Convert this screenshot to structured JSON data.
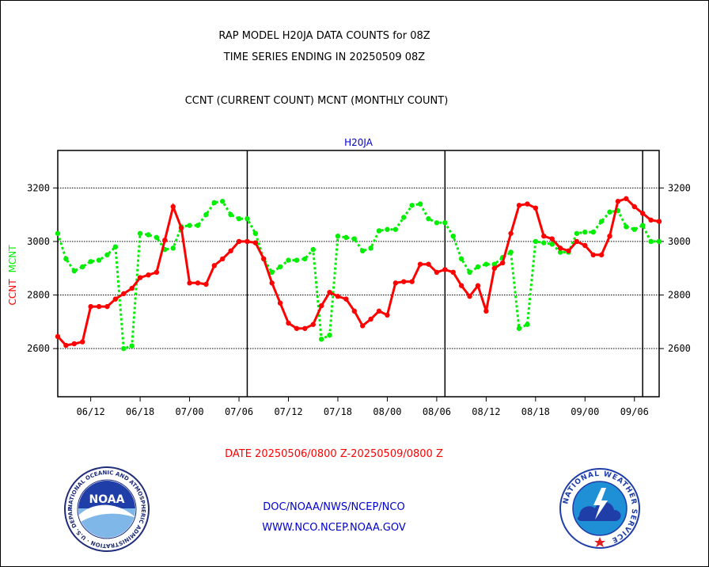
{
  "header": {
    "line1": "RAP MODEL H20JA DATA COUNTS for 08Z",
    "line2": "TIME SERIES ENDING IN 20250509 08Z",
    "line3": "CCNT (CURRENT COUNT) MCNT (MONTHLY COUNT)"
  },
  "footer": {
    "date_range": "DATE 20250506/0800 Z-20250509/0800 Z",
    "org": "DOC/NOAA/NWS/NCEP/NCO",
    "url": "WWW.NCO.NCEP.NOAA.GOV"
  },
  "logos": {
    "noaa_text": "NOAA",
    "noaa_ring_text": "NATIONAL OCEANIC AND ATMOSPHERIC ADMINISTRATION · U.S. DEPARTMENT OF COMMERCE",
    "nws_ring_text": "NATIONAL WEATHER SERVICE"
  },
  "colors": {
    "ccnt": "#ff0000",
    "mcnt": "#00ee00",
    "text": "#000000",
    "footer_date": "#ff0000",
    "footer_links": "#0000cc",
    "plot_title": "#0000cc"
  },
  "chart_data": {
    "type": "line",
    "title": "H20JA",
    "ylabel_ccnt": "CCNT",
    "ylabel_mcnt": "MCNT",
    "ylim": [
      2420,
      3340
    ],
    "yticks": [
      2600,
      2800,
      3000,
      3200
    ],
    "ytick_labels": [
      "2600",
      "2800",
      "3000",
      "3200"
    ],
    "x_tick_labels": [
      "06/12",
      "06/18",
      "07/00",
      "07/06",
      "07/12",
      "07/18",
      "08/00",
      "08/06",
      "08/12",
      "08/18",
      "09/00",
      "09/06"
    ],
    "x_tick_index": [
      5,
      11,
      17,
      23,
      29,
      35,
      41,
      47,
      53,
      59,
      65,
      71
    ],
    "x_range": [
      1,
      74
    ],
    "day_boundaries": [
      24,
      48,
      72
    ],
    "grid": true,
    "series": [
      {
        "name": "CCNT",
        "color": "#ff0000",
        "x": [
          1,
          2,
          3,
          4,
          5,
          6,
          7,
          8,
          9,
          10,
          11,
          12,
          13,
          14,
          15,
          16,
          17,
          18,
          19,
          20,
          21,
          22,
          23,
          24,
          25,
          26,
          27,
          28,
          29,
          30,
          31,
          32,
          33,
          34,
          35,
          36,
          37,
          38,
          39,
          40,
          41,
          42,
          43,
          44,
          45,
          46,
          47,
          48,
          49,
          50,
          51,
          52,
          53,
          54,
          55,
          56,
          57,
          58,
          59,
          60,
          61,
          62,
          63,
          64,
          65,
          66,
          67,
          68,
          69,
          70,
          71,
          72,
          73,
          74
        ],
        "values": [
          2645,
          2612,
          2618,
          2625,
          2757,
          2757,
          2757,
          2785,
          2805,
          2825,
          2865,
          2875,
          2885,
          3005,
          3130,
          3050,
          2845,
          2845,
          2840,
          2910,
          2935,
          2965,
          3000,
          3000,
          2995,
          2935,
          2845,
          2770,
          2695,
          2675,
          2675,
          2690,
          2760,
          2810,
          2795,
          2785,
          2740,
          2685,
          2710,
          2740,
          2725,
          2845,
          2850,
          2850,
          2915,
          2915,
          2885,
          2895,
          2885,
          2835,
          2795,
          2835,
          2740,
          2900,
          2920,
          3030,
          3135,
          3140,
          3125,
          3020,
          3010,
          2975,
          2965,
          3000,
          2985,
          2950,
          2950,
          3020,
          3150,
          3160,
          3130,
          3105,
          3080,
          3075
        ]
      },
      {
        "name": "MCNT",
        "color": "#00ee00",
        "x": [
          1,
          2,
          3,
          4,
          5,
          6,
          7,
          8,
          9,
          10,
          11,
          12,
          13,
          14,
          15,
          16,
          17,
          18,
          19,
          20,
          21,
          22,
          23,
          24,
          25,
          26,
          27,
          28,
          29,
          30,
          31,
          32,
          33,
          34,
          35,
          36,
          37,
          38,
          39,
          40,
          41,
          42,
          43,
          44,
          45,
          46,
          47,
          48,
          49,
          50,
          51,
          52,
          53,
          54,
          55,
          56,
          57,
          58,
          59,
          60,
          61,
          62,
          63,
          64,
          65,
          66,
          67,
          68,
          69,
          70,
          71,
          72,
          73,
          74
        ],
        "values": [
          3030,
          2935,
          2890,
          2905,
          2925,
          2930,
          2950,
          2980,
          2600,
          2610,
          3030,
          3025,
          3015,
          2970,
          2975,
          3055,
          3060,
          3060,
          3100,
          3145,
          3150,
          3100,
          3085,
          3085,
          3030,
          2935,
          2885,
          2905,
          2930,
          2930,
          2935,
          2970,
          2635,
          2650,
          3020,
          3015,
          3010,
          2965,
          2975,
          3040,
          3045,
          3045,
          3090,
          3135,
          3140,
          3085,
          3070,
          3070,
          3020,
          2935,
          2885,
          2905,
          2915,
          2915,
          2940,
          2960,
          2675,
          2690,
          3000,
          2995,
          2990,
          2960,
          2960,
          3030,
          3035,
          3035,
          3075,
          3110,
          3115,
          3055,
          3045,
          3060,
          3000,
          3000
        ]
      }
    ]
  }
}
